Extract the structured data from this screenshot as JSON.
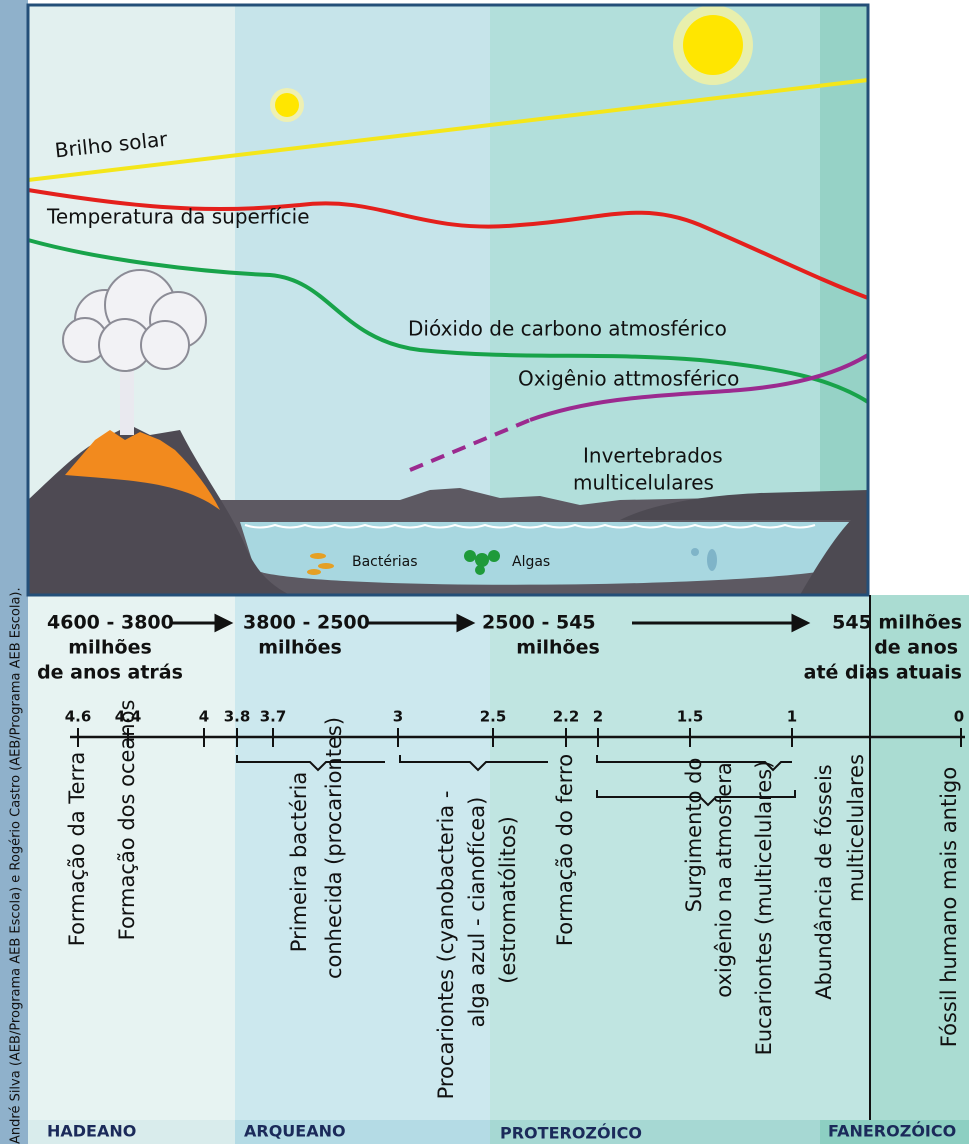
{
  "credit": "André Silva (AEB/Programa AEB Escola) e  Rogério Castro (AEB/Programa AEB Escola).",
  "curves": {
    "solar": "Brilho solar",
    "temperature": "Temperatura da superfície",
    "co2": "Dióxido de carbono atmosférico",
    "oxygen": "Oxigênio attmosférico",
    "invertebrates": [
      "Invertebrados",
      "multicelulares"
    ]
  },
  "ocean": {
    "bacteria": "Bactérias",
    "algae": "Algas"
  },
  "eras": [
    {
      "lines": [
        "4600 - 3800",
        "milhões",
        "de anos atrás"
      ]
    },
    {
      "lines": [
        "3800 - 2500",
        "milhões"
      ]
    },
    {
      "lines": [
        "2500 - 545",
        "milhões"
      ]
    },
    {
      "lines": [
        "545 milhões",
        "de anos",
        "até dias atuais"
      ]
    }
  ],
  "timeline": {
    "ticks": [
      4.6,
      4.4,
      4,
      3.8,
      3.7,
      3,
      2.5,
      2.2,
      2,
      1.5,
      1,
      0
    ]
  },
  "events": [
    {
      "lines": [
        "Formação da Terra"
      ]
    },
    {
      "lines": [
        "Formação dos oceanos"
      ]
    },
    {
      "lines": [
        "Primeira bactéria",
        "conhecida (procariontes)"
      ]
    },
    {
      "lines": [
        "Procariontes (cyanobacteria -",
        "alga azul - cianofícea)",
        "(estromatólitos)"
      ]
    },
    {
      "lines": [
        "Formação do ferro"
      ]
    },
    {
      "lines": [
        "Surgimento do",
        "oxigênio na atmosfera"
      ]
    },
    {
      "lines": [
        "Eucariontes (multicelulares)"
      ]
    },
    {
      "lines": [
        "Abundância de fósseis",
        "multicelulares"
      ]
    },
    {
      "lines": [
        "Fóssil humano mais antigo"
      ]
    }
  ],
  "eons": [
    "HADEANO",
    "ARQUEANO",
    "PROTEROZÓICO",
    "FANEROZÓICO"
  ]
}
